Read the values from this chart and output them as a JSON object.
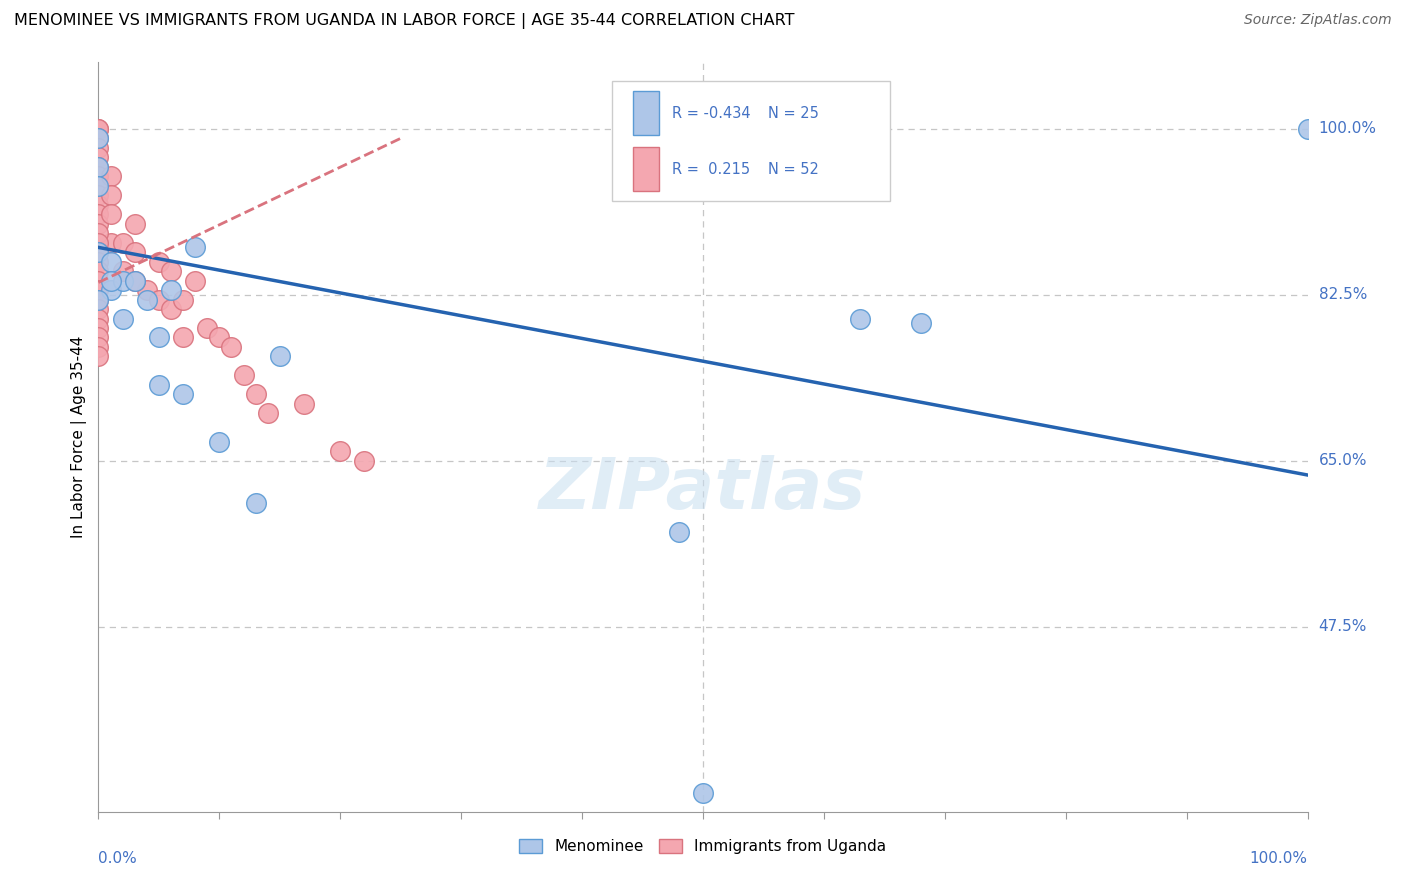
{
  "title": "MENOMINEE VS IMMIGRANTS FROM UGANDA IN LABOR FORCE | AGE 35-44 CORRELATION CHART",
  "source": "Source: ZipAtlas.com",
  "ylabel": "In Labor Force | Age 35-44",
  "ytick_values": [
    1.0,
    0.825,
    0.65,
    0.475
  ],
  "ytick_labels": [
    "100.0%",
    "82.5%",
    "65.0%",
    "47.5%"
  ],
  "xlim": [
    0.0,
    1.0
  ],
  "ylim": [
    0.28,
    1.07
  ],
  "menominee_color": "#aec6e8",
  "menominee_edge_color": "#5b9bd5",
  "uganda_color": "#f4a7b0",
  "uganda_edge_color": "#d9737e",
  "R_menominee": -0.434,
  "N_menominee": 25,
  "R_uganda": 0.215,
  "N_uganda": 52,
  "menominee_x": [
    0.0,
    0.0,
    0.0,
    0.01,
    0.01,
    0.02,
    0.03,
    0.04,
    0.06,
    0.08,
    0.13,
    0.15,
    0.63,
    0.68,
    1.0,
    0.0,
    0.0,
    0.01,
    0.02,
    0.05,
    0.05,
    0.07,
    0.1,
    0.48,
    0.5
  ],
  "menominee_y": [
    0.99,
    0.96,
    0.87,
    0.86,
    0.83,
    0.84,
    0.84,
    0.82,
    0.83,
    0.875,
    0.605,
    0.76,
    0.8,
    0.795,
    1.0,
    0.82,
    0.94,
    0.84,
    0.8,
    0.78,
    0.73,
    0.72,
    0.67,
    0.575,
    0.3
  ],
  "uganda_x": [
    0.0,
    0.0,
    0.0,
    0.0,
    0.0,
    0.0,
    0.0,
    0.0,
    0.0,
    0.0,
    0.0,
    0.0,
    0.01,
    0.01,
    0.01,
    0.02,
    0.02,
    0.03,
    0.03,
    0.04,
    0.05,
    0.05,
    0.06,
    0.06,
    0.07,
    0.07,
    0.08,
    0.09,
    0.1,
    0.11,
    0.12,
    0.13,
    0.14,
    0.17,
    0.2,
    0.22,
    0.0,
    0.0,
    0.0,
    0.0,
    0.0,
    0.0,
    0.0,
    0.0,
    0.0,
    0.0,
    0.0,
    0.0,
    0.0,
    0.0,
    0.01,
    0.03
  ],
  "uganda_y": [
    1.0,
    1.0,
    0.99,
    0.98,
    0.97,
    0.96,
    0.95,
    0.94,
    0.93,
    0.92,
    0.91,
    0.9,
    0.95,
    0.93,
    0.88,
    0.88,
    0.85,
    0.9,
    0.87,
    0.83,
    0.86,
    0.82,
    0.85,
    0.81,
    0.82,
    0.78,
    0.84,
    0.79,
    0.78,
    0.77,
    0.74,
    0.72,
    0.7,
    0.71,
    0.66,
    0.65,
    0.89,
    0.88,
    0.87,
    0.86,
    0.85,
    0.84,
    0.83,
    0.82,
    0.81,
    0.8,
    0.79,
    0.78,
    0.77,
    0.76,
    0.91,
    0.84
  ],
  "blue_line_x0": 0.0,
  "blue_line_x1": 1.0,
  "blue_line_y0": 0.875,
  "blue_line_y1": 0.635,
  "pink_line_x0": 0.0,
  "pink_line_x1": 0.25,
  "pink_line_y0": 0.838,
  "pink_line_y1": 0.99,
  "watermark": "ZIPatlas"
}
